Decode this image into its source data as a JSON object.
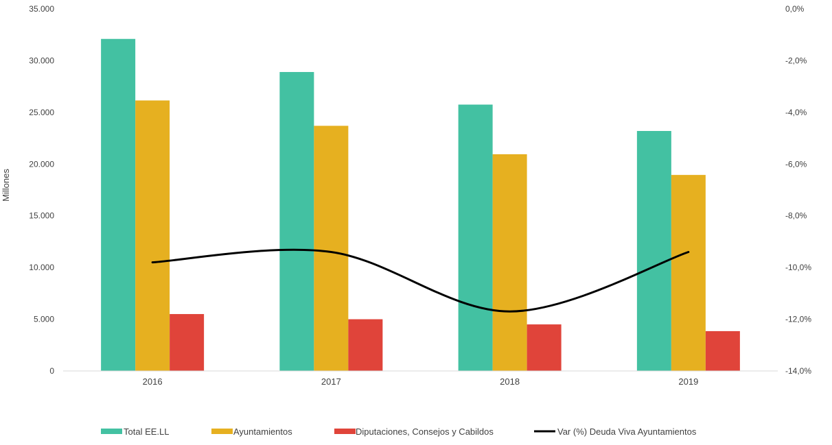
{
  "chart_data": {
    "type": "bar",
    "categories": [
      "2016",
      "2017",
      "2018",
      "2019"
    ],
    "series": [
      {
        "name": "Total EE.LL",
        "kind": "bar",
        "axis": "left",
        "color": "#43c1a2",
        "values": [
          32100,
          28900,
          25750,
          23200
        ]
      },
      {
        "name": "Ayuntamientos",
        "kind": "bar",
        "axis": "left",
        "color": "#e6b020",
        "values": [
          26150,
          23700,
          20950,
          18950
        ]
      },
      {
        "name": "Diputaciones, Consejos y Cabildos",
        "kind": "bar",
        "axis": "left",
        "color": "#e0443a",
        "values": [
          5500,
          5000,
          4500,
          3850
        ]
      },
      {
        "name": "Var (%) Deuda Viva Ayuntamientos",
        "kind": "line",
        "axis": "right",
        "color": "#000000",
        "values": [
          -9.8,
          -9.4,
          -11.7,
          -9.4
        ]
      }
    ],
    "ylabel": "Millones",
    "ylim": [
      0,
      35000
    ],
    "y2lim": [
      -14.0,
      0.0
    ],
    "yticks": [
      "0",
      "5.000",
      "10.000",
      "15.000",
      "20.000",
      "25.000",
      "30.000",
      "35.000"
    ],
    "y2ticks": [
      "-14,0%",
      "-12,0%",
      "-10,0%",
      "-8,0%",
      "-6,0%",
      "-4,0%",
      "-2,0%",
      "0,0%"
    ],
    "grid": false,
    "legend_position": "bottom"
  }
}
